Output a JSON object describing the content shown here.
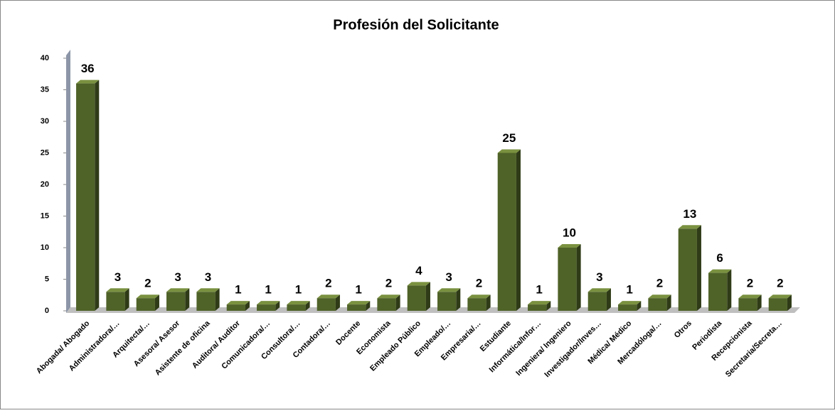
{
  "chart_data": {
    "type": "bar3d",
    "title": "Profesión del Solicitante",
    "categories": [
      "Abogada/ Abogado",
      "Administradora/…",
      "Arquitecta/…",
      "Asesora/ Asesor",
      "Asistente de oficina",
      "Auditora/ Auditor",
      "Comunicadora/…",
      "Consultora/…",
      "Contadora/…",
      "Docente",
      "Economista",
      "Empleado Público",
      "Empleado/…",
      "Empresaria/…",
      "Estudiante",
      "Informática/Infor…",
      "Ingeniera/ Ingeniero",
      "Investigador/Inves…",
      "Médica/ Médico",
      "Mercadóloga/…",
      "Otros",
      "Periodista",
      "Recepcionista",
      "Secretaria/Secreta…"
    ],
    "values": [
      36,
      3,
      2,
      3,
      3,
      1,
      1,
      1,
      2,
      1,
      2,
      4,
      3,
      2,
      25,
      1,
      10,
      3,
      1,
      2,
      13,
      6,
      2,
      2
    ],
    "color": "#4f6228",
    "ylim": [
      0,
      40
    ],
    "yticks": [
      0,
      5,
      10,
      15,
      20,
      25,
      30,
      35,
      40
    ]
  }
}
